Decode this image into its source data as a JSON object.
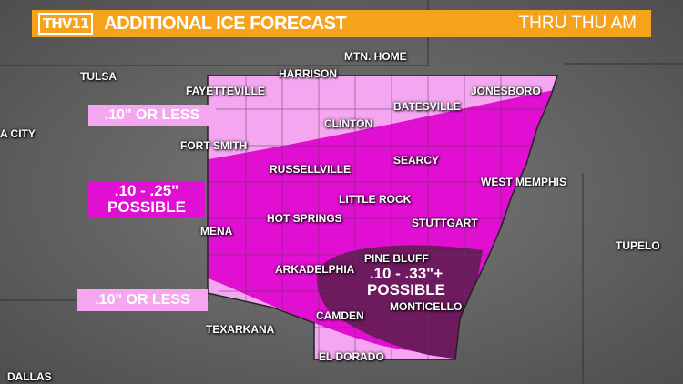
{
  "header": {
    "logo": "THV11",
    "title": "ADDITIONAL ICE FORECAST",
    "subtitle": "THRU THU AM",
    "color": "#f7a21b"
  },
  "legend_boxes": [
    {
      "text": ".10\" OR LESS",
      "color": "#f4a6f0"
    },
    {
      "line1": ".10 - .25\"",
      "line2": "POSSIBLE",
      "color": "#e10fd2"
    },
    {
      "text": ".10\" OR LESS",
      "color": "#f4a6f0"
    },
    {
      "line1": ".10 - .33\"+",
      "line2": "POSSIBLE",
      "color": "#6e1a5e"
    }
  ],
  "cities": [
    "MTN. HOME",
    "HARRISON",
    "TULSA",
    "FAYETTEVILLE",
    "JONESBORO",
    "BATESVILLE",
    "A CITY",
    "CLINTON",
    "FORT SMITH",
    "SEARCY",
    "RUSSELLVILLE",
    "WEST MEMPHIS",
    "LITTLE ROCK",
    "HOT SPRINGS",
    "STUTTGART",
    "MENA",
    "TUPELO",
    "PINE BLUFF",
    "ARKADELPHIA",
    "MONTICELLO",
    "CAMDEN",
    "TEXARKANA",
    "EL DORADO",
    "DALLAS"
  ]
}
